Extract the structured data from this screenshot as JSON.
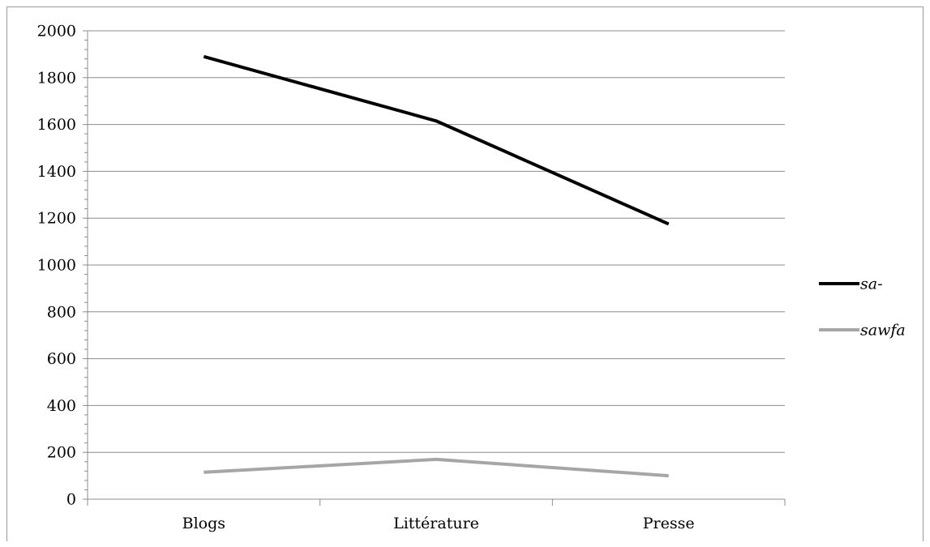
{
  "chart_data": {
    "type": "line",
    "categories": [
      "Blogs",
      "Littérature",
      "Presse"
    ],
    "series": [
      {
        "name": "sa-",
        "values": [
          1890,
          1615,
          1175
        ],
        "color": "#000000"
      },
      {
        "name": "sawfa",
        "values": [
          115,
          170,
          100
        ],
        "color": "#a6a6a6"
      }
    ],
    "title": "",
    "xlabel": "",
    "ylabel": "",
    "ylim": [
      0,
      2000
    ],
    "ytick_step": 200,
    "yticks": [
      "0",
      "200",
      "400",
      "600",
      "800",
      "1000",
      "1200",
      "1400",
      "1600",
      "1800",
      "2000"
    ],
    "grid": true,
    "legend": "right"
  }
}
